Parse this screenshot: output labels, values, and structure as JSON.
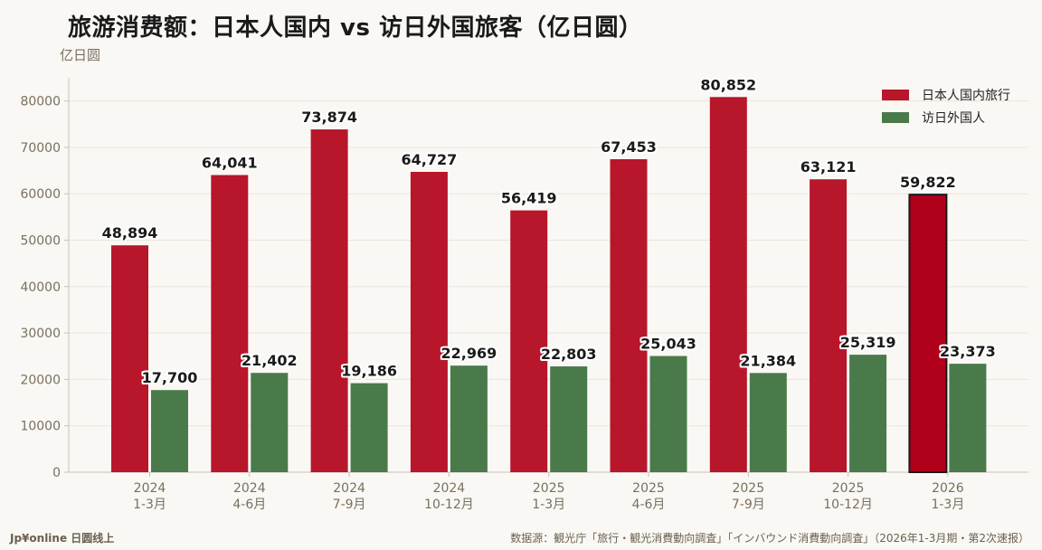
{
  "title": "旅游消费额：日本人国内 vs 访日外国旅客（亿日圆）",
  "unit_label": "亿日圆",
  "brand": "Jp¥online 日圆线上",
  "source": "数据源：観光庁「旅行・観光消費動向調査」「インバウンド消費動向調査」（2026年1-3月期・第2次速报）",
  "colors": {
    "domestic": "#b8162b",
    "domestic_highlight": "#b0001a",
    "inbound": "#4a7a4a",
    "grid": "#ece4dc",
    "axis": "#c9c0b4",
    "tick_text": "#7a6f5f"
  },
  "chart_data": {
    "type": "bar",
    "categories": [
      [
        "2024",
        "1-3月"
      ],
      [
        "2024",
        "4-6月"
      ],
      [
        "2024",
        "7-9月"
      ],
      [
        "2024",
        "10-12月"
      ],
      [
        "2025",
        "1-3月"
      ],
      [
        "2025",
        "4-6月"
      ],
      [
        "2025",
        "7-9月"
      ],
      [
        "2025",
        "10-12月"
      ],
      [
        "2026",
        "1-3月"
      ]
    ],
    "series": [
      {
        "name": "日本人国内旅行",
        "values": [
          48894,
          64041,
          73874,
          64727,
          56419,
          67453,
          80852,
          63121,
          59822
        ]
      },
      {
        "name": "访日外国人",
        "values": [
          17700,
          21402,
          19186,
          22969,
          22803,
          25043,
          21384,
          25319,
          23373
        ]
      }
    ],
    "highlight_index": 8,
    "ylim": [
      0,
      85000
    ],
    "yticks": [
      0,
      10000,
      20000,
      30000,
      40000,
      50000,
      60000,
      70000,
      80000
    ],
    "grid": true,
    "legend_position": "top-right"
  }
}
